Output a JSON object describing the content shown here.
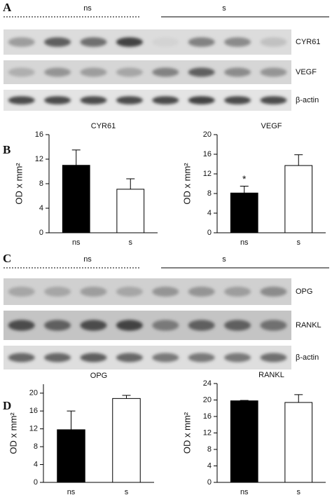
{
  "blot_panels": [
    {
      "label": "A",
      "groups": [
        "ns",
        "s"
      ],
      "lanes": [
        "CYR61",
        "VEGF",
        "β-actin"
      ]
    },
    {
      "label": "C",
      "groups": [
        "ns",
        "s"
      ],
      "lanes": [
        "OPG",
        "RANKL",
        "β-actin"
      ]
    }
  ],
  "chart_panels": [
    "B",
    "D"
  ],
  "chart_data": [
    {
      "type": "bar",
      "title": "CYR61",
      "ylabel": "OD x mm²",
      "categories": [
        "ns",
        "s"
      ],
      "values": [
        11,
        7.1
      ],
      "errors": [
        2.5,
        1.7
      ],
      "colors": [
        "#000000",
        "#ffffff"
      ],
      "ylim": [
        0,
        16
      ],
      "yticks": [
        0,
        4,
        8,
        12,
        16
      ]
    },
    {
      "type": "bar",
      "title": "VEGF",
      "ylabel": "OD x mm²",
      "categories": [
        "ns",
        "s"
      ],
      "values": [
        8.1,
        13.7
      ],
      "errors": [
        1.4,
        2.2
      ],
      "colors": [
        "#000000",
        "#ffffff"
      ],
      "ylim": [
        0,
        20
      ],
      "yticks": [
        0,
        4,
        8,
        12,
        16,
        20
      ],
      "annotation": "*"
    },
    {
      "type": "bar",
      "title": "OPG",
      "ylabel": "OD x mm²",
      "categories": [
        "ns",
        "s"
      ],
      "values": [
        11.8,
        18.8
      ],
      "errors": [
        4.2,
        0.7
      ],
      "colors": [
        "#000000",
        "#ffffff"
      ],
      "ylim": [
        0,
        22
      ],
      "yticks": [
        0,
        4,
        8,
        12,
        16,
        20
      ]
    },
    {
      "type": "bar",
      "title": "RANKL",
      "ylabel": "OD x mm²",
      "categories": [
        "ns",
        "s"
      ],
      "values": [
        19.8,
        19.4
      ],
      "errors": [
        0.1,
        1.9
      ],
      "colors": [
        "#000000",
        "#ffffff"
      ],
      "ylim": [
        0,
        24
      ],
      "yticks": [
        0,
        4,
        8,
        12,
        16,
        20,
        24
      ]
    }
  ]
}
